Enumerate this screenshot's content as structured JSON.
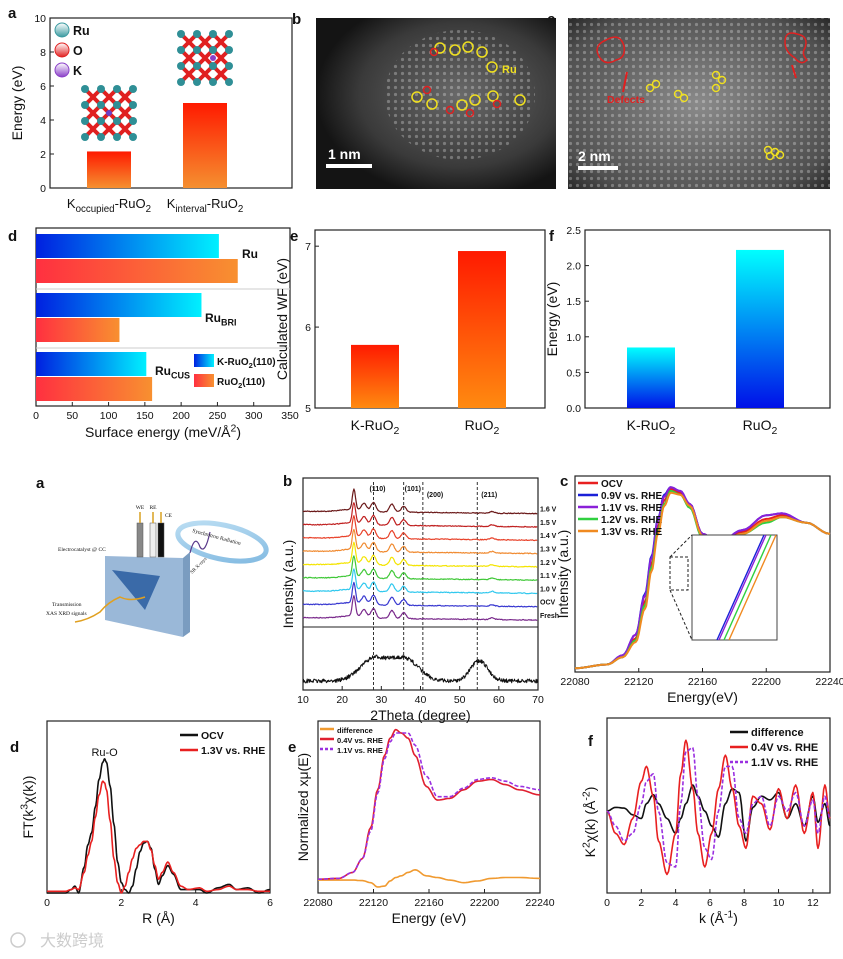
{
  "panel_letters": {
    "top": [
      "a",
      "b",
      "c",
      "d",
      "e",
      "f"
    ],
    "bottom": [
      "a",
      "b",
      "c",
      "d",
      "e",
      "f"
    ]
  },
  "tem_b": {
    "label_ru": "Ru",
    "scale": "1 nm"
  },
  "tem_c": {
    "label_defects": "Defects",
    "scale": "2 nm"
  },
  "diagram": {
    "we": "WE",
    "re": "RE",
    "ce": "CE",
    "electrocatalyst": "Electrocatalyst @ CC",
    "synchrotron": "Synchrotron Radiation",
    "sr": "SR X-rays",
    "transmission1": "Transmission",
    "transmission2": "XAS XRD signals"
  },
  "watermark": "大数跨境",
  "chart_data": [
    {
      "id": "top-a",
      "type": "bar",
      "categories": [
        "K_{occupied}-RuO_{2}",
        "K_{interval}-RuO_{2}"
      ],
      "values": [
        2.15,
        5.0
      ],
      "ylabel": "Energy (eV)",
      "ylim": [
        0,
        10
      ],
      "yticks": [
        0,
        2,
        4,
        6,
        8,
        10
      ],
      "legend": [
        {
          "name": "Ru",
          "color": "#3a9aa0"
        },
        {
          "name": "O",
          "color": "#e02020"
        },
        {
          "name": "K",
          "color": "#8a3fc8"
        }
      ],
      "colors": {
        "top": "#ff1a00",
        "bottom": "#f59030"
      }
    },
    {
      "id": "top-d",
      "type": "hbar",
      "groups": [
        "Ru",
        "Ru_{BRI}",
        "Ru_{CUS}"
      ],
      "series": [
        {
          "name": "K-RuO_{2}(110)",
          "values": [
            252,
            228,
            152
          ],
          "colors": [
            "#0020e0",
            "#00f0ff"
          ]
        },
        {
          "name": "RuO_{2}(110)",
          "values": [
            278,
            115,
            160
          ],
          "colors": [
            "#ff3040",
            "#f89030"
          ]
        }
      ],
      "xlabel": "Surface energy (meV/Å^{2})",
      "xlim": [
        0,
        350
      ],
      "xticks": [
        0,
        50,
        100,
        150,
        200,
        250,
        300,
        350
      ]
    },
    {
      "id": "top-e",
      "type": "bar",
      "categories": [
        "K-RuO_{2}",
        "RuO_{2}"
      ],
      "values": [
        5.78,
        6.94
      ],
      "ylabel": "Calculated WF (eV)",
      "ylim": [
        5,
        7.2
      ],
      "yticks": [
        5,
        6,
        7
      ],
      "colors": {
        "top": "#ff1a00",
        "bottom": "#ff8a10"
      }
    },
    {
      "id": "top-f",
      "type": "bar",
      "categories": [
        "K-RuO_{2}",
        "RuO_{2}"
      ],
      "values": [
        0.85,
        2.22
      ],
      "ylabel": "Energy (eV)",
      "ylim": [
        0,
        2.5
      ],
      "yticks": [
        "0.0",
        "0.5",
        "1.0",
        "1.5",
        "2.0",
        "2.5"
      ],
      "colors": {
        "top": "#00ffff",
        "bottom": "#0010e8"
      }
    },
    {
      "id": "bottom-b",
      "type": "line",
      "xlabel": "2Theta (degree)",
      "ylabel": "Intensity (a.u.)",
      "xlim": [
        10,
        70
      ],
      "xticks": [
        10,
        20,
        30,
        40,
        50,
        60,
        70
      ],
      "reference_lines": [
        {
          "x": 28,
          "label": "(110)"
        },
        {
          "x": 35.7,
          "label": "(101)"
        },
        {
          "x": 40.6,
          "label": "(200)"
        },
        {
          "x": 54.5,
          "label": "(211)"
        }
      ],
      "peaks": [
        [
          23,
          1.0
        ],
        [
          25.6,
          0.35
        ],
        [
          28,
          0.45
        ],
        [
          32.7,
          0.4
        ],
        [
          35.7,
          0.3
        ],
        [
          58.3,
          0.08
        ]
      ],
      "series": [
        {
          "name": "Fresh",
          "color": "#7a2a8c"
        },
        {
          "name": "OCV",
          "color": "#3838d0"
        },
        {
          "name": "1.0 V",
          "color": "#30c8ee"
        },
        {
          "name": "1.1 V",
          "color": "#40c838"
        },
        {
          "name": "1.2 V",
          "color": "#f4e400"
        },
        {
          "name": "1.3 V",
          "color": "#f08a30"
        },
        {
          "name": "1.4 V",
          "color": "#e84028"
        },
        {
          "name": "1.5 V",
          "color": "#c02020"
        },
        {
          "name": "1.6 V",
          "color": "#6a1818"
        }
      ],
      "substrate_peaks": [
        [
          28,
          0.55
        ],
        [
          36,
          0.55
        ],
        [
          55,
          0.5
        ]
      ]
    },
    {
      "id": "bottom-c",
      "type": "line",
      "xlabel": "Energy(eV)",
      "ylabel": "Intensity (a.u.)",
      "xlim": [
        22080,
        22240
      ],
      "ylim": [
        0,
        1.05
      ],
      "xticks": [
        22080,
        22120,
        22160,
        22200,
        22240
      ],
      "x": [
        22080,
        22100,
        22110,
        22118,
        22124,
        22128,
        22132,
        22136,
        22140,
        22146,
        22152,
        22160,
        22170,
        22185,
        22200,
        22210,
        22225,
        22240
      ],
      "series": [
        {
          "name": "OCV",
          "color": "#e82020",
          "y": [
            0.02,
            0.04,
            0.08,
            0.18,
            0.38,
            0.58,
            0.78,
            0.92,
            0.98,
            0.96,
            0.9,
            0.74,
            0.69,
            0.75,
            0.82,
            0.84,
            0.8,
            0.74
          ]
        },
        {
          "name": "0.9V vs. RHE",
          "color": "#1a20d8",
          "y": [
            0.02,
            0.04,
            0.09,
            0.2,
            0.42,
            0.62,
            0.82,
            0.95,
            0.99,
            0.97,
            0.9,
            0.74,
            0.69,
            0.76,
            0.84,
            0.85,
            0.8,
            0.74
          ]
        },
        {
          "name": "1.1V vs. RHE",
          "color": "#8a20d8",
          "y": [
            0.02,
            0.04,
            0.09,
            0.2,
            0.41,
            0.61,
            0.81,
            0.94,
            0.99,
            0.97,
            0.9,
            0.74,
            0.69,
            0.76,
            0.84,
            0.85,
            0.8,
            0.74
          ]
        },
        {
          "name": "1.2V vs. RHE",
          "color": "#30d040",
          "y": [
            0.02,
            0.04,
            0.08,
            0.17,
            0.36,
            0.56,
            0.76,
            0.9,
            0.97,
            0.95,
            0.88,
            0.72,
            0.68,
            0.74,
            0.8,
            0.83,
            0.8,
            0.74
          ]
        },
        {
          "name": "1.3V vs. RHE",
          "color": "#f08a20",
          "y": [
            0.02,
            0.04,
            0.08,
            0.16,
            0.34,
            0.54,
            0.74,
            0.89,
            0.96,
            0.95,
            0.89,
            0.73,
            0.69,
            0.74,
            0.81,
            0.83,
            0.8,
            0.74
          ]
        }
      ]
    },
    {
      "id": "bottom-d",
      "type": "line",
      "xlabel": "R (Å)",
      "ylabel": "FT(k^{3}χ(k))",
      "xlim": [
        0,
        6
      ],
      "ylim": [
        0,
        1
      ],
      "xticks": [
        0,
        2,
        4,
        6
      ],
      "annotation": "Ru-O",
      "x": [
        0,
        0.5,
        0.65,
        0.75,
        0.85,
        1.0,
        1.1,
        1.2,
        1.3,
        1.4,
        1.5,
        1.55,
        1.6,
        1.7,
        1.8,
        1.9,
        2.0,
        2.1,
        2.2,
        2.3,
        2.4,
        2.5,
        2.6,
        2.7,
        2.8,
        2.9,
        3.0,
        3.1,
        3.25,
        3.4,
        3.6,
        3.8,
        4.1,
        4.3,
        4.6,
        4.9,
        5.1,
        5.4,
        5.7,
        6.0
      ],
      "series": [
        {
          "name": "OCV",
          "color": "#111111",
          "y": [
            0,
            0,
            0.02,
            0.04,
            0.0,
            0.15,
            0.28,
            0.35,
            0.5,
            0.66,
            0.76,
            0.78,
            0.76,
            0.62,
            0.4,
            0.18,
            0.06,
            0.02,
            0.0,
            0.04,
            0.14,
            0.24,
            0.29,
            0.3,
            0.26,
            0.14,
            0.05,
            0.1,
            0.16,
            0.11,
            0.02,
            0.02,
            0.02,
            0.0,
            0.03,
            0.05,
            0.02,
            0.03,
            0.0,
            0.02
          ]
        },
        {
          "name": "1.3V vs. RHE",
          "color": "#e82020",
          "y": [
            0.01,
            0.01,
            0.02,
            0.03,
            0.02,
            0.12,
            0.22,
            0.3,
            0.44,
            0.57,
            0.65,
            0.64,
            0.6,
            0.42,
            0.2,
            0.06,
            0.0,
            0.04,
            0.12,
            0.2,
            0.26,
            0.28,
            0.3,
            0.3,
            0.25,
            0.16,
            0.08,
            0.12,
            0.18,
            0.12,
            0.04,
            0.02,
            0.03,
            0.01,
            0.02,
            0.04,
            0.02,
            0.02,
            0.01,
            0.01
          ]
        }
      ]
    },
    {
      "id": "bottom-e",
      "type": "line",
      "xlabel": "Energy (eV)",
      "ylabel": "Normalized xμ(E)",
      "xlim": [
        22080,
        22240
      ],
      "ylim": [
        0,
        1
      ],
      "xticks": [
        22080,
        22120,
        22160,
        22200,
        22240
      ],
      "x": [
        22080,
        22095,
        22105,
        22112,
        22118,
        22123,
        22128,
        22132,
        22136,
        22140,
        22145,
        22150,
        22158,
        22166,
        22175,
        22185,
        22195,
        22205,
        22215,
        22225,
        22240
      ],
      "series": [
        {
          "name": "difference",
          "color": "#f09a30",
          "y": [
            0.075,
            0.075,
            0.075,
            0.072,
            0.06,
            0.035,
            0.04,
            0.07,
            0.09,
            0.1,
            0.12,
            0.135,
            0.1,
            0.09,
            0.075,
            0.06,
            0.07,
            0.085,
            0.09,
            0.09,
            0.085
          ]
        },
        {
          "name": "0.4V vs. RHE",
          "color": "#e02030",
          "y": [
            0.08,
            0.085,
            0.12,
            0.2,
            0.38,
            0.6,
            0.8,
            0.9,
            0.95,
            0.93,
            0.9,
            0.8,
            0.62,
            0.54,
            0.55,
            0.6,
            0.65,
            0.66,
            0.63,
            0.6,
            0.57
          ]
        },
        {
          "name": "1.1V vs. RHE",
          "color": "#9a30e0",
          "dashed": true,
          "y": [
            0.08,
            0.085,
            0.12,
            0.2,
            0.36,
            0.58,
            0.78,
            0.88,
            0.93,
            0.93,
            0.93,
            0.86,
            0.68,
            0.56,
            0.56,
            0.61,
            0.66,
            0.67,
            0.65,
            0.62,
            0.6
          ]
        }
      ]
    },
    {
      "id": "bottom-f",
      "type": "line",
      "xlabel": "k (Å^{-1})",
      "ylabel": "K^{2}χ(k) (Å^{-2})",
      "xlim": [
        0,
        13
      ],
      "ylim": [
        -1.1,
        1.25
      ],
      "xticks": [
        0,
        2,
        4,
        6,
        8,
        10,
        12
      ],
      "x": [
        0,
        0.5,
        1,
        1.5,
        2,
        2.3,
        2.7,
        3,
        3.5,
        4,
        4.3,
        4.6,
        5,
        5.3,
        5.7,
        6.1,
        6.5,
        6.9,
        7.3,
        7.7,
        8.1,
        8.5,
        9,
        9.5,
        10,
        10.5,
        11,
        11.5,
        12,
        12.3,
        12.7,
        13
      ],
      "series": [
        {
          "name": "difference",
          "color": "#111111",
          "y": [
            0,
            0.05,
            0.04,
            -0.05,
            -0.1,
            0.1,
            0.22,
            0.1,
            -0.1,
            -0.3,
            -0.1,
            0.1,
            0.35,
            0.2,
            0.0,
            -0.2,
            -0.35,
            0.1,
            0.3,
            0.25,
            -0.4,
            0.05,
            0.2,
            0.15,
            0.25,
            -0.1,
            0.1,
            -0.2,
            0.2,
            -0.15,
            0.1,
            -0.2
          ]
        },
        {
          "name": "0.4V vs. RHE",
          "color": "#e82020",
          "y": [
            0,
            -0.3,
            -0.45,
            -0.1,
            0.4,
            0.6,
            0.2,
            -0.4,
            -0.85,
            -0.3,
            0.5,
            0.95,
            0.3,
            -0.3,
            -0.75,
            -0.3,
            0.3,
            0.75,
            0.3,
            -0.2,
            -0.5,
            0.2,
            0.1,
            -0.25,
            0.3,
            -0.1,
            0.35,
            -0.3,
            0.25,
            -0.5,
            0.35,
            -0.1
          ]
        },
        {
          "name": "1.1V vs. RHE",
          "color": "#9a30e0",
          "dashed": true,
          "y": [
            0,
            -0.2,
            -0.4,
            -0.3,
            0.1,
            0.4,
            0.5,
            0.0,
            -0.7,
            -0.75,
            0.1,
            0.8,
            0.85,
            0.2,
            -0.5,
            -0.65,
            0.0,
            0.6,
            0.6,
            -0.1,
            -0.3,
            0.1,
            0.2,
            -0.2,
            0.2,
            0.0,
            0.25,
            -0.2,
            0.15,
            -0.3,
            0.2,
            -0.1
          ]
        }
      ]
    }
  ]
}
